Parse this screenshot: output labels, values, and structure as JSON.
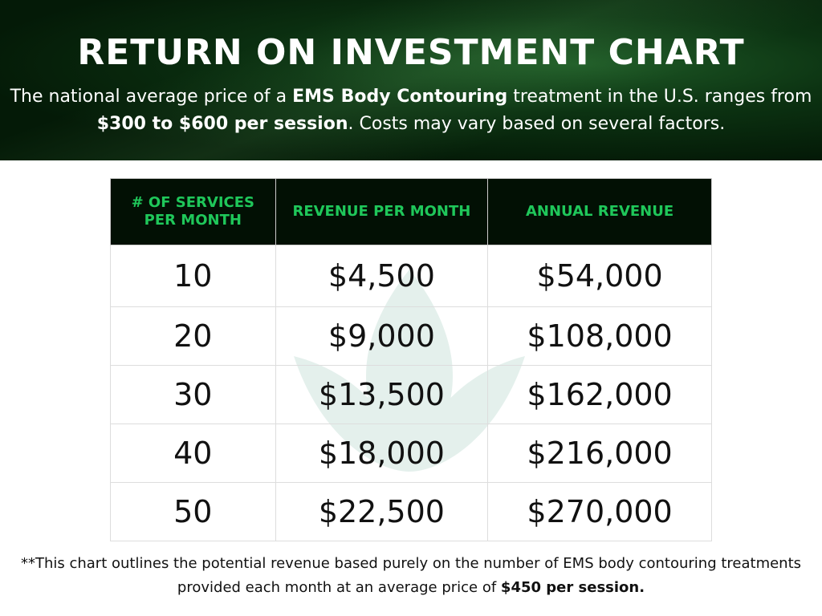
{
  "header": {
    "title": "RETURN ON INVESTMENT CHART",
    "subtitle_parts": [
      "The national average price of a ",
      "EMS Body Contouring",
      " treatment in the U.S. ranges from ",
      "$300 to $600 per session",
      ". Costs may vary based on several factors."
    ]
  },
  "colors": {
    "banner": "#041a07",
    "header_bg": "#021004",
    "header_text": "#1fc75a"
  },
  "chart_data": {
    "type": "table",
    "columns": [
      "# OF SERVICES PER MONTH",
      "REVENUE PER MONTH",
      "ANNUAL REVENUE"
    ],
    "rows": [
      [
        "10",
        "$4,500",
        "$54,000"
      ],
      [
        "20",
        "$9,000",
        "$108,000"
      ],
      [
        "30",
        "$13,500",
        "$162,000"
      ],
      [
        "40",
        "$18,000",
        "$216,000"
      ],
      [
        "50",
        "$22,500",
        "$270,000"
      ]
    ]
  },
  "footnote": {
    "text": "**This chart outlines the potential revenue based purely on the number of EMS body contouring treatments provided each month at an average price of ",
    "bold": "$450 per session."
  }
}
